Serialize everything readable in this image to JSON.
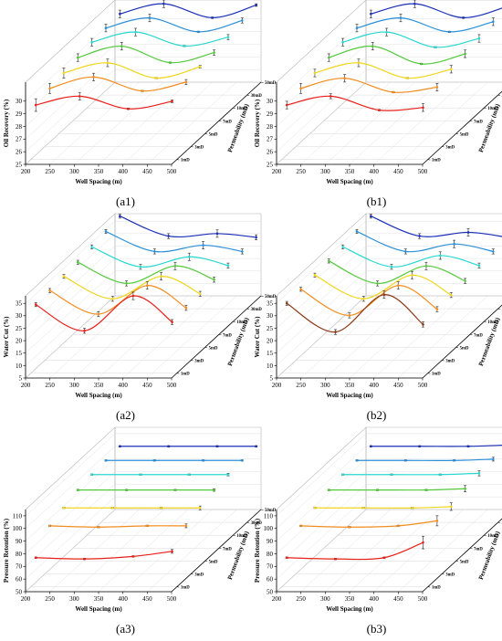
{
  "chart_data": [
    {
      "id": "a1",
      "caption": "(a1)",
      "type": "line",
      "xlabel": "Well Spacing (m)",
      "ylabel": "Oil Recovery (%)",
      "zlabel": "Permeability (mD)",
      "xticks": [
        "200",
        "250",
        "300",
        "350",
        "400",
        "450",
        "500"
      ],
      "yticks": [
        "25",
        "26",
        "27",
        "28",
        "29",
        "30"
      ],
      "zticks": [
        "1mD",
        "3mD",
        "5mD",
        "7mD",
        "10mD",
        "30mD",
        "50mD"
      ],
      "xlim": [
        200,
        500
      ],
      "ylim": [
        25,
        31.5
      ],
      "x": [
        210,
        300,
        400,
        490
      ],
      "series": [
        {
          "z": "1mD",
          "color": "#e8201a",
          "y": [
            29.3,
            30.0,
            29.0,
            29.6
          ],
          "err": [
            0.5,
            0.3,
            0.05,
            0.1
          ]
        },
        {
          "z": "3mD",
          "color": "#f28c1e",
          "y": [
            29.6,
            30.5,
            29.4,
            30.1
          ],
          "err": [
            0.4,
            0.3,
            0.05,
            0.2
          ]
        },
        {
          "z": "5mD",
          "color": "#f0d51c",
          "y": [
            29.8,
            30.6,
            29.4,
            30.3
          ],
          "err": [
            0.4,
            0.3,
            0.05,
            0.1
          ]
        },
        {
          "z": "7mD",
          "color": "#52c93a",
          "y": [
            30.0,
            30.9,
            29.6,
            30.4
          ],
          "err": [
            0.3,
            0.3,
            0.05,
            0.2
          ]
        },
        {
          "z": "10mD",
          "color": "#2bd6d0",
          "y": [
            30.2,
            31.0,
            29.9,
            30.6
          ],
          "err": [
            0.3,
            0.3,
            0.05,
            0.2
          ]
        },
        {
          "z": "30mD",
          "color": "#2a8fd8",
          "y": [
            30.3,
            31.1,
            30.0,
            30.9
          ],
          "err": [
            0.3,
            0.3,
            0.05,
            0.2
          ]
        },
        {
          "z": "50mD",
          "color": "#1a2fb5",
          "y": [
            30.4,
            31.2,
            30.1,
            31.1
          ],
          "err": [
            0.3,
            0.3,
            0.05,
            0.1
          ]
        }
      ]
    },
    {
      "id": "b1",
      "caption": "(b1)",
      "type": "line",
      "xlabel": "Well Spacing (m)",
      "ylabel": "Oil Recovery (%)",
      "zlabel": "Permeability (mD)",
      "xticks": [
        "200",
        "250",
        "300",
        "350",
        "400",
        "450",
        "500"
      ],
      "yticks": [
        "25",
        "26",
        "27",
        "28",
        "29",
        "30"
      ],
      "zticks": [
        "1mD",
        "3mD",
        "5mD",
        "7mD",
        "10mD",
        "30mD",
        "50mD"
      ],
      "xlim": [
        200,
        500
      ],
      "ylim": [
        25,
        31.5
      ],
      "x": [
        210,
        300,
        400,
        490
      ],
      "series": [
        {
          "z": "1mD",
          "color": "#e8201a",
          "y": [
            29.3,
            30.0,
            28.9,
            29.1
          ],
          "err": [
            0.3,
            0.2,
            0.05,
            0.3
          ]
        },
        {
          "z": "3mD",
          "color": "#f28c1e",
          "y": [
            29.6,
            30.4,
            29.3,
            29.7
          ],
          "err": [
            0.4,
            0.3,
            0.05,
            0.3
          ]
        },
        {
          "z": "5mD",
          "color": "#f0d51c",
          "y": [
            29.8,
            30.6,
            29.4,
            30.1
          ],
          "err": [
            0.3,
            0.3,
            0.05,
            0.3
          ]
        },
        {
          "z": "7mD",
          "color": "#52c93a",
          "y": [
            30.0,
            30.9,
            29.5,
            30.3
          ],
          "err": [
            0.3,
            0.3,
            0.05,
            0.3
          ]
        },
        {
          "z": "10mD",
          "color": "#2bd6d0",
          "y": [
            30.2,
            31.0,
            29.8,
            30.5
          ],
          "err": [
            0.3,
            0.3,
            0.05,
            0.3
          ]
        },
        {
          "z": "30mD",
          "color": "#2a8fd8",
          "y": [
            30.3,
            31.1,
            30.0,
            30.8
          ],
          "err": [
            0.3,
            0.3,
            0.05,
            0.3
          ]
        },
        {
          "z": "50mD",
          "color": "#1a2fb5",
          "y": [
            30.4,
            31.2,
            30.1,
            31.0
          ],
          "err": [
            0.3,
            0.3,
            0.05,
            0.3
          ]
        }
      ]
    },
    {
      "id": "a2",
      "caption": "(a2)",
      "type": "line",
      "xlabel": "Well Spacing (m)",
      "ylabel": "Water Cut (%)",
      "zlabel": "Permeability (mD)",
      "xticks": [
        "200",
        "250",
        "300",
        "350",
        "400",
        "450",
        "500"
      ],
      "yticks": [
        "5",
        "10",
        "15",
        "20",
        "25",
        "30",
        "35"
      ],
      "zticks": [
        "1mD",
        "3mD",
        "5mD",
        "7mD",
        "10mD",
        "30mD",
        "50mD"
      ],
      "xlim": [
        200,
        500
      ],
      "ylim": [
        5,
        38
      ],
      "x": [
        210,
        310,
        410,
        490
      ],
      "series": [
        {
          "z": "1mD",
          "color": "#e8201a",
          "y": [
            32.5,
            22.0,
            36.0,
            25.5
          ],
          "err": [
            0.8,
            1.0,
            1.5,
            1.0
          ]
        },
        {
          "z": "3mD",
          "color": "#f28c1e",
          "y": [
            33.0,
            23.5,
            35.0,
            26.0
          ],
          "err": [
            0.8,
            1.0,
            1.5,
            1.0
          ]
        },
        {
          "z": "5mD",
          "color": "#f0d51c",
          "y": [
            33.5,
            24.5,
            33.5,
            26.5
          ],
          "err": [
            0.8,
            1.0,
            1.5,
            1.0
          ]
        },
        {
          "z": "7mD",
          "color": "#52c93a",
          "y": [
            34.0,
            25.5,
            32.5,
            27.0
          ],
          "err": [
            0.8,
            1.0,
            1.5,
            1.0
          ]
        },
        {
          "z": "10mD",
          "color": "#2bd6d0",
          "y": [
            35.0,
            27.0,
            31.0,
            27.5
          ],
          "err": [
            0.8,
            1.0,
            1.5,
            1.0
          ]
        },
        {
          "z": "30mD",
          "color": "#2a8fd8",
          "y": [
            36.0,
            28.0,
            30.5,
            28.0
          ],
          "err": [
            0.8,
            1.0,
            1.5,
            1.0
          ]
        },
        {
          "z": "50mD",
          "color": "#1a2fb5",
          "y": [
            37.0,
            29.0,
            30.0,
            28.5
          ],
          "err": [
            0.8,
            1.0,
            1.5,
            1.0
          ]
        }
      ]
    },
    {
      "id": "b2",
      "caption": "(b2)",
      "type": "line",
      "xlabel": "Well Spacing (m)",
      "ylabel": "Water Cut (%)",
      "zlabel": "Permeability (mD)",
      "xticks": [
        "200",
        "250",
        "300",
        "350",
        "400",
        "450",
        "500"
      ],
      "yticks": [
        "5",
        "10",
        "15",
        "20",
        "25",
        "30",
        "35"
      ],
      "zticks": [
        "1mD",
        "3mD",
        "5mD",
        "7mD",
        "10mD",
        "30mD",
        "50mD"
      ],
      "xlim": [
        200,
        500
      ],
      "ylim": [
        5,
        38
      ],
      "x": [
        210,
        310,
        410,
        490
      ],
      "series": [
        {
          "z": "1mD",
          "color": "#8b3a1a",
          "y": [
            33.0,
            21.5,
            36.5,
            24.5
          ],
          "err": [
            0.8,
            1.0,
            1.5,
            1.0
          ]
        },
        {
          "z": "3mD",
          "color": "#f28c1e",
          "y": [
            33.5,
            23.0,
            35.0,
            25.5
          ],
          "err": [
            0.8,
            1.0,
            1.5,
            1.0
          ]
        },
        {
          "z": "5mD",
          "color": "#f0d51c",
          "y": [
            34.0,
            24.5,
            34.0,
            26.0
          ],
          "err": [
            0.8,
            1.0,
            1.5,
            1.0
          ]
        },
        {
          "z": "7mD",
          "color": "#52c93a",
          "y": [
            34.5,
            25.5,
            32.5,
            26.5
          ],
          "err": [
            0.8,
            1.0,
            1.5,
            1.0
          ]
        },
        {
          "z": "10mD",
          "color": "#2bd6d0",
          "y": [
            35.0,
            27.0,
            31.5,
            27.5
          ],
          "err": [
            0.8,
            1.0,
            1.5,
            1.0
          ]
        },
        {
          "z": "30mD",
          "color": "#2a8fd8",
          "y": [
            36.0,
            28.0,
            31.0,
            28.0
          ],
          "err": [
            0.8,
            1.0,
            1.5,
            1.0
          ]
        },
        {
          "z": "50mD",
          "color": "#1a2fb5",
          "y": [
            37.0,
            29.0,
            30.5,
            28.5
          ],
          "err": [
            0.8,
            1.0,
            1.5,
            1.0
          ]
        }
      ]
    },
    {
      "id": "a3",
      "caption": "(a3)",
      "type": "line",
      "xlabel": "Well Spacing (m)",
      "ylabel": "Pressure Retention (%)",
      "zlabel": "Permeability (mD)",
      "xticks": [
        "200",
        "250",
        "300",
        "350",
        "400",
        "450",
        "500"
      ],
      "yticks": [
        "50",
        "60",
        "70",
        "80",
        "90",
        "100",
        "110"
      ],
      "zticks": [
        "1mD",
        "3mD",
        "5mD",
        "7mD",
        "10mD",
        "30mD",
        "50mD"
      ],
      "xlim": [
        200,
        500
      ],
      "ylim": [
        50,
        115
      ],
      "x": [
        210,
        310,
        410,
        490
      ],
      "series": [
        {
          "z": "1mD",
          "color": "#e8201a",
          "y": [
            73,
            72,
            74,
            78
          ],
          "err": [
            0.5,
            0.5,
            0.5,
            1.5
          ]
        },
        {
          "z": "3mD",
          "color": "#f28c1e",
          "y": [
            88,
            87,
            88,
            88
          ],
          "err": [
            0.5,
            0.5,
            0.5,
            1.5
          ]
        },
        {
          "z": "5mD",
          "color": "#f0d51c",
          "y": [
            92,
            92,
            92,
            92
          ],
          "err": [
            0.5,
            0.5,
            0.5,
            1.5
          ]
        },
        {
          "z": "7mD",
          "color": "#52c93a",
          "y": [
            96,
            96,
            96,
            96
          ],
          "err": [
            0.5,
            0.5,
            0.5,
            1.0
          ]
        },
        {
          "z": "10mD",
          "color": "#2bd6d0",
          "y": [
            98,
            98,
            98,
            98
          ],
          "err": [
            0.5,
            0.5,
            0.5,
            1.0
          ]
        },
        {
          "z": "30mD",
          "color": "#2a8fd8",
          "y": [
            99,
            99,
            99,
            99
          ],
          "err": [
            0.5,
            0.5,
            0.5,
            0.5
          ]
        },
        {
          "z": "50mD",
          "color": "#1a2fb5",
          "y": [
            100,
            100,
            100,
            100
          ],
          "err": [
            0.5,
            0.5,
            0.5,
            0.5
          ]
        }
      ]
    },
    {
      "id": "b3",
      "caption": "(b3)",
      "type": "line",
      "xlabel": "Well Spacing (m)",
      "ylabel": "Pressure Retention (%)",
      "zlabel": "Permeability (mD)",
      "xticks": [
        "200",
        "250",
        "300",
        "350",
        "400",
        "450",
        "500"
      ],
      "yticks": [
        "50",
        "60",
        "70",
        "80",
        "90",
        "100",
        "110"
      ],
      "zticks": [
        "1mD",
        "3mD",
        "5mD",
        "7mD",
        "10mD",
        "30mD",
        "50mD"
      ],
      "xlim": [
        200,
        500
      ],
      "ylim": [
        50,
        115
      ],
      "x": [
        210,
        310,
        410,
        490
      ],
      "series": [
        {
          "z": "1mD",
          "color": "#e8201a",
          "y": [
            73,
            72,
            73,
            85
          ],
          "err": [
            0.5,
            0.5,
            0.5,
            5.0
          ]
        },
        {
          "z": "3mD",
          "color": "#f28c1e",
          "y": [
            88,
            87,
            88,
            92
          ],
          "err": [
            0.5,
            0.5,
            0.5,
            4.0
          ]
        },
        {
          "z": "5mD",
          "color": "#f0d51c",
          "y": [
            92,
            92,
            92,
            93
          ],
          "err": [
            0.5,
            0.5,
            0.5,
            3.0
          ]
        },
        {
          "z": "7mD",
          "color": "#52c93a",
          "y": [
            96,
            96,
            96,
            97
          ],
          "err": [
            0.5,
            0.5,
            0.5,
            2.5
          ]
        },
        {
          "z": "10mD",
          "color": "#2bd6d0",
          "y": [
            98,
            98,
            98,
            99
          ],
          "err": [
            0.5,
            0.5,
            0.5,
            2.0
          ]
        },
        {
          "z": "30mD",
          "color": "#2a8fd8",
          "y": [
            99,
            99,
            99,
            100
          ],
          "err": [
            0.5,
            0.5,
            0.5,
            1.5
          ]
        },
        {
          "z": "50mD",
          "color": "#1a2fb5",
          "y": [
            100,
            100,
            100,
            101
          ],
          "err": [
            0.5,
            0.5,
            0.5,
            1.0
          ]
        }
      ]
    }
  ]
}
